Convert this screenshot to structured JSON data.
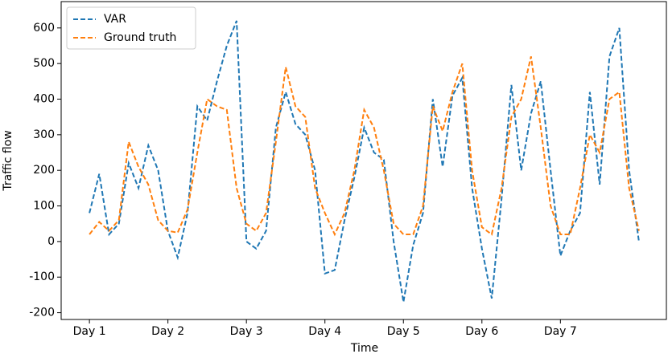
{
  "chart_data": {
    "type": "line",
    "xlabel": "Time",
    "ylabel": "Traffic flow",
    "x": [
      0,
      0.125,
      0.25,
      0.375,
      0.5,
      0.625,
      0.75,
      0.875,
      1,
      1.125,
      1.25,
      1.375,
      1.5,
      1.625,
      1.75,
      1.875,
      2,
      2.125,
      2.25,
      2.375,
      2.5,
      2.625,
      2.75,
      2.875,
      3,
      3.125,
      3.25,
      3.375,
      3.5,
      3.625,
      3.75,
      3.875,
      4,
      4.125,
      4.25,
      4.375,
      4.5,
      4.625,
      4.75,
      4.875,
      5,
      5.125,
      5.25,
      5.375,
      5.5,
      5.625,
      5.75,
      5.875,
      6,
      6.125,
      6.25,
      6.375,
      6.5,
      6.625,
      6.75,
      6.875,
      7
    ],
    "series": [
      {
        "name": "VAR",
        "color": "#1f77b4",
        "values": [
          80,
          190,
          20,
          50,
          220,
          150,
          270,
          200,
          30,
          -45,
          80,
          380,
          340,
          450,
          550,
          620,
          0,
          -20,
          30,
          320,
          420,
          330,
          300,
          200,
          -90,
          -80,
          60,
          180,
          320,
          250,
          230,
          0,
          -170,
          -10,
          80,
          400,
          210,
          410,
          460,
          150,
          -20,
          -160,
          120,
          440,
          200,
          360,
          450,
          200,
          -40,
          30,
          80,
          420,
          160,
          520,
          600,
          200,
          0
        ]
      },
      {
        "name": "Ground truth",
        "color": "#ff7f0e",
        "values": [
          20,
          55,
          30,
          60,
          280,
          210,
          160,
          60,
          30,
          25,
          90,
          250,
          400,
          380,
          370,
          150,
          50,
          30,
          80,
          280,
          490,
          380,
          350,
          150,
          80,
          20,
          80,
          200,
          370,
          320,
          200,
          50,
          20,
          20,
          100,
          380,
          310,
          420,
          500,
          200,
          40,
          20,
          150,
          350,
          400,
          520,
          320,
          100,
          20,
          20,
          150,
          300,
          250,
          400,
          420,
          150,
          30
        ]
      }
    ],
    "xlim": [
      -0.36,
      7.35
    ],
    "xticks": [
      {
        "value": 0,
        "label": "Day 1"
      },
      {
        "value": 1,
        "label": "Day 2"
      },
      {
        "value": 2,
        "label": "Day 3"
      },
      {
        "value": 3,
        "label": "Day 4"
      },
      {
        "value": 4,
        "label": "Day 5"
      },
      {
        "value": 5,
        "label": "Day 6"
      },
      {
        "value": 6,
        "label": "Day 7"
      }
    ],
    "ylim": [
      -219,
      674
    ],
    "yticks": [
      -200,
      -100,
      0,
      100,
      200,
      300,
      400,
      500,
      600
    ],
    "legend": "upper left"
  }
}
